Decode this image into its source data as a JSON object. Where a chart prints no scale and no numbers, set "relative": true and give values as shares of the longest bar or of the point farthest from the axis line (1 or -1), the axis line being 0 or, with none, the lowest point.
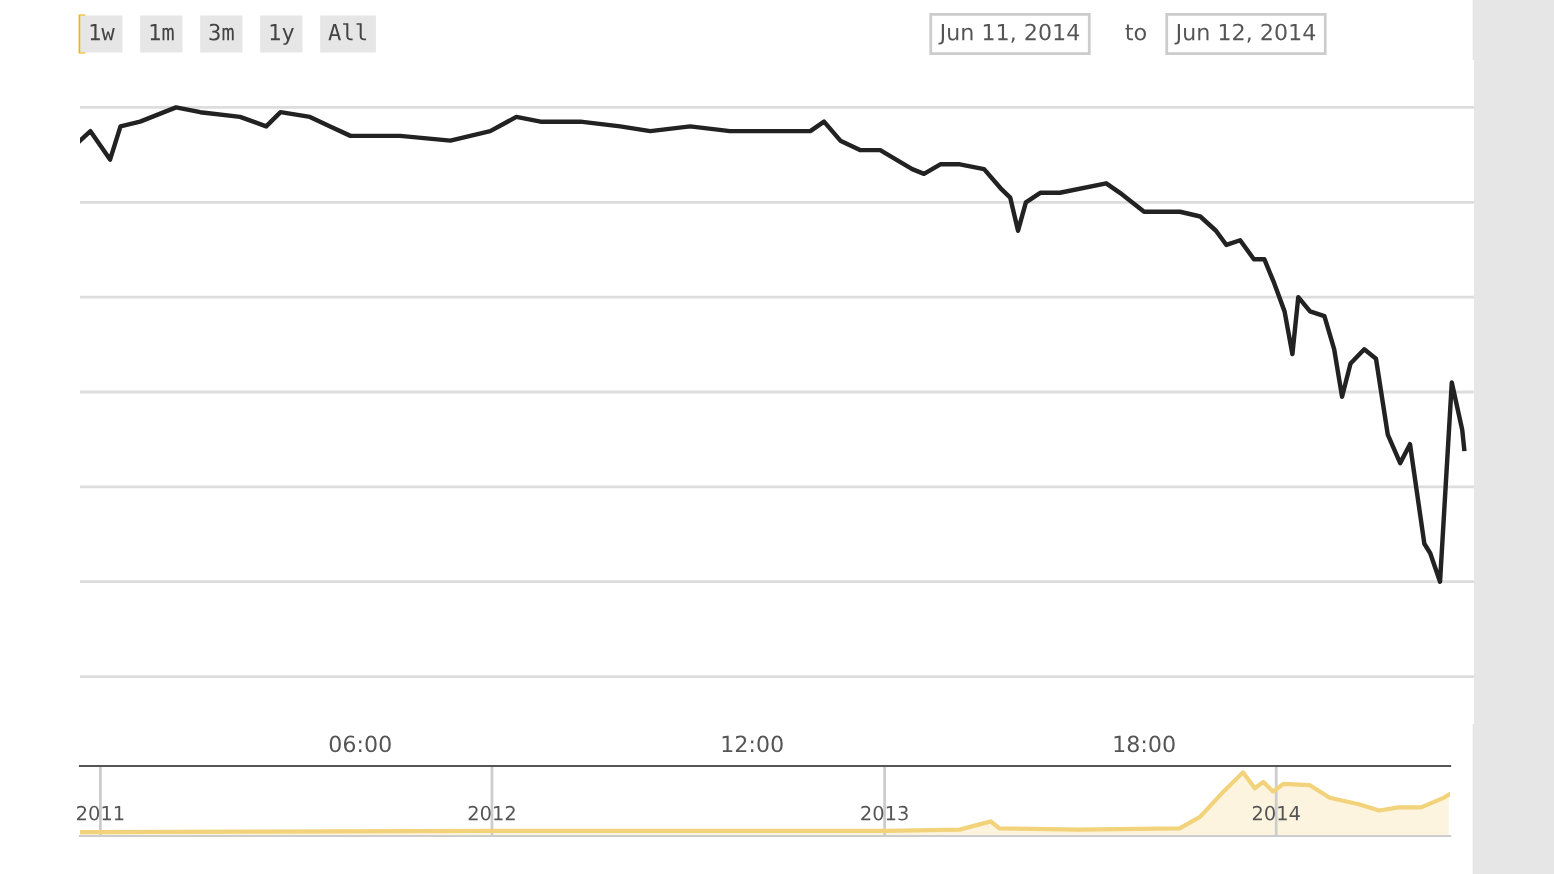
{
  "chart_data": [
    {
      "type": "line",
      "relative": true,
      "grid": "y",
      "color": "#222222",
      "annotations": [
        "1w",
        "1m",
        "3m",
        "1y",
        "All",
        "Jun 11, 2014",
        "to",
        "Jun 12, 2014"
      ],
      "xlim": [
        1.71,
        23.05
      ],
      "xticks": [
        {
          "value": 6,
          "label": "06:00"
        },
        {
          "value": 12,
          "label": "12:00"
        },
        {
          "value": 18,
          "label": "18:00"
        }
      ],
      "x": [
        1.71,
        1.87,
        2.17,
        2.33,
        2.63,
        3.18,
        3.55,
        4.16,
        4.56,
        4.78,
        5.23,
        5.54,
        5.85,
        6.15,
        6.61,
        7.38,
        7.99,
        8.39,
        8.76,
        9.37,
        9.98,
        10.44,
        11.05,
        11.66,
        12.43,
        12.89,
        13.1,
        13.35,
        13.65,
        13.96,
        14.45,
        14.63,
        14.88,
        15.18,
        15.55,
        15.8,
        15.95,
        16.07,
        16.19,
        16.41,
        16.71,
        17.42,
        17.63,
        18.0,
        18.55,
        18.86,
        19.1,
        19.26,
        19.47,
        19.68,
        19.84,
        19.99,
        20.15,
        20.27,
        20.36,
        20.54,
        20.76,
        20.91,
        21.03,
        21.16,
        21.37,
        21.55,
        21.73,
        21.92,
        22.07,
        22.29,
        22.38,
        22.53,
        22.71,
        22.87,
        22.9
      ],
      "values": [
        0.93,
        0.95,
        0.89,
        0.96,
        0.97,
        1.0,
        0.99,
        0.98,
        0.96,
        0.99,
        0.98,
        0.96,
        0.94,
        0.94,
        0.94,
        0.93,
        0.95,
        0.98,
        0.97,
        0.97,
        0.96,
        0.95,
        0.96,
        0.95,
        0.95,
        0.95,
        0.97,
        0.93,
        0.91,
        0.91,
        0.87,
        0.86,
        0.88,
        0.88,
        0.87,
        0.83,
        0.81,
        0.74,
        0.8,
        0.82,
        0.82,
        0.84,
        0.82,
        0.78,
        0.78,
        0.77,
        0.74,
        0.71,
        0.72,
        0.68,
        0.68,
        0.63,
        0.57,
        0.48,
        0.6,
        0.57,
        0.56,
        0.49,
        0.39,
        0.46,
        0.49,
        0.47,
        0.31,
        0.25,
        0.29,
        0.08,
        0.06,
        0.0,
        0.42,
        0.32,
        0.28
      ]
    },
    {
      "type": "area",
      "relative": true,
      "grid": "x",
      "color": "#f2d27a",
      "xlim": [
        "2010-12-13",
        "2014-06-12"
      ],
      "xticks": [
        "2011",
        "2012",
        "2013",
        "2014"
      ],
      "x": [
        "2010-12-13",
        "2011-06-01",
        "2012-01-01",
        "2012-07-01",
        "2013-01-01",
        "2013-03-12",
        "2013-04-10",
        "2013-04-18",
        "2013-07-01",
        "2013-10-03",
        "2013-10-22",
        "2013-11-13",
        "2013-12-01",
        "2013-12-12",
        "2013-12-20",
        "2013-12-29",
        "2014-01-08",
        "2014-02-01",
        "2014-02-20",
        "2014-03-19",
        "2014-04-07",
        "2014-04-25",
        "2014-05-16",
        "2014-06-06",
        "2014-06-11"
      ],
      "values": [
        0.06,
        0.07,
        0.08,
        0.08,
        0.08,
        0.1,
        0.23,
        0.12,
        0.1,
        0.12,
        0.3,
        0.7,
        1.0,
        0.75,
        0.85,
        0.7,
        0.82,
        0.8,
        0.6,
        0.5,
        0.4,
        0.45,
        0.45,
        0.6,
        0.65
      ]
    }
  ]
}
